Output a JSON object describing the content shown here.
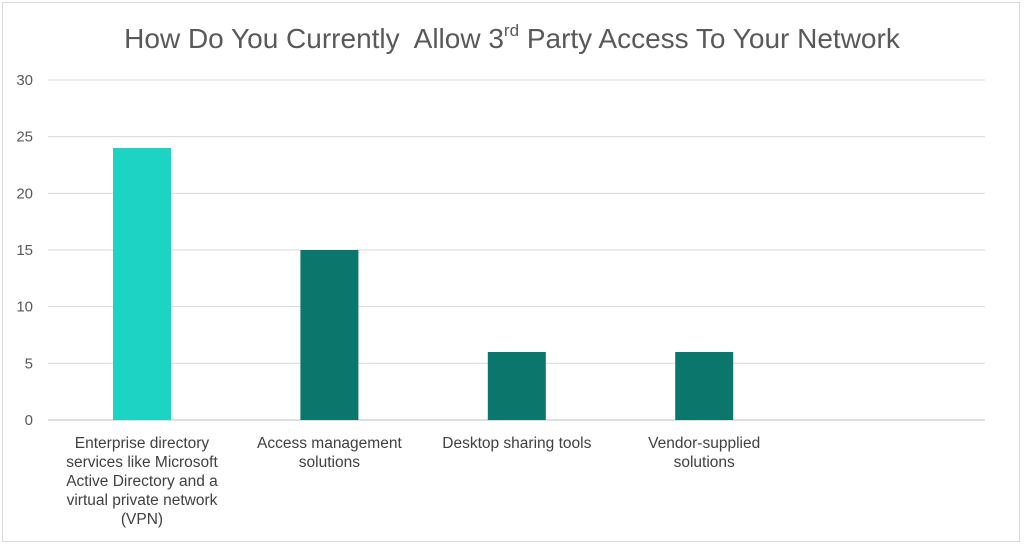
{
  "chart_data": {
    "type": "bar",
    "title": {
      "before": "How Do You Currently  Allow 3",
      "sup": "rd",
      "after": " Party Access To Your Network"
    },
    "categories": [
      "Enterprise directory services like Microsoft Active Directory and a virtual private network (VPN)",
      "Access management solutions",
      "Desktop sharing tools",
      "Vendor-supplied solutions"
    ],
    "values": [
      24,
      15,
      6,
      6
    ],
    "bar_colors": [
      "#1DD3C4",
      "#0B776C",
      "#0B776C",
      "#0B776C"
    ],
    "ylim": [
      0,
      30
    ],
    "yticks": [
      0,
      5,
      10,
      15,
      20,
      25,
      30
    ],
    "xlabel": "",
    "ylabel": "",
    "grid": true,
    "legend": "none"
  }
}
